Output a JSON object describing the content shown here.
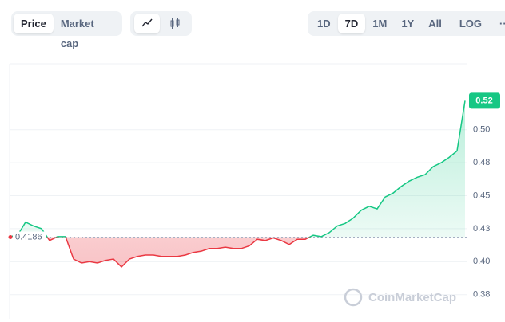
{
  "toolbar": {
    "modes": [
      "Price",
      "Market cap"
    ],
    "ranges": [
      "1D",
      "7D",
      "1M",
      "1Y",
      "All"
    ],
    "log": "LOG",
    "more": "···"
  },
  "watermark": "CoinMarketCap",
  "chart_data": {
    "type": "line",
    "values": [
      0.419,
      0.42,
      0.43,
      0.427,
      0.425,
      0.416,
      0.419,
      0.419,
      0.402,
      0.399,
      0.4,
      0.399,
      0.401,
      0.402,
      0.396,
      0.402,
      0.404,
      0.405,
      0.405,
      0.404,
      0.404,
      0.404,
      0.405,
      0.407,
      0.408,
      0.41,
      0.41,
      0.411,
      0.41,
      0.41,
      0.412,
      0.417,
      0.416,
      0.418,
      0.416,
      0.413,
      0.417,
      0.417,
      0.42,
      0.419,
      0.422,
      0.427,
      0.429,
      0.433,
      0.439,
      0.442,
      0.44,
      0.449,
      0.452,
      0.457,
      0.461,
      0.464,
      0.466,
      0.472,
      0.475,
      0.479,
      0.484,
      0.522
    ],
    "baseline": 0.4186,
    "current": {
      "value": 0.522,
      "label": "0.52"
    },
    "up_color": "#16c784",
    "down_color": "#ea3943",
    "ylim": [
      0.3567,
      0.55
    ],
    "yticks": [
      {
        "value": 0.375,
        "label": "0.38"
      },
      {
        "value": 0.4,
        "label": "0.40"
      },
      {
        "value": 0.425,
        "label": "0.43"
      },
      {
        "value": 0.45,
        "label": "0.45"
      },
      {
        "value": 0.475,
        "label": "0.48"
      },
      {
        "value": 0.5,
        "label": "0.50"
      }
    ],
    "grid": true
  }
}
